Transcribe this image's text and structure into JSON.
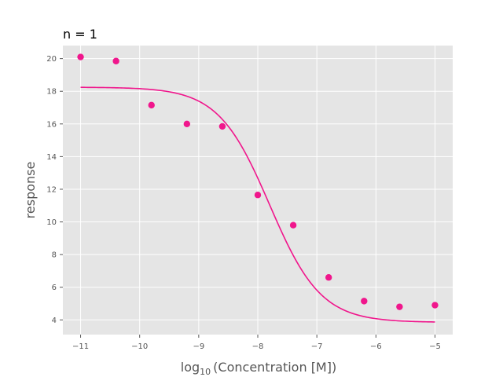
{
  "chart_data": {
    "type": "scatter",
    "title": "n = 1",
    "xlabel_main": "log",
    "xlabel_sub": "10",
    "xlabel_rest": "(Concentration [M])",
    "ylabel": "response",
    "xlim": [
      -11.3,
      -4.7
    ],
    "ylim": [
      3.1,
      20.8
    ],
    "x_ticks": [
      -11,
      -10,
      -9,
      -8,
      -7,
      -6,
      -5
    ],
    "x_tick_labels": [
      "−11",
      "−10",
      "−9",
      "−8",
      "−7",
      "−6",
      "−5"
    ],
    "y_ticks": [
      4,
      6,
      8,
      10,
      12,
      14,
      16,
      18,
      20
    ],
    "y_tick_labels": [
      "4",
      "6",
      "8",
      "10",
      "12",
      "14",
      "16",
      "18",
      "20"
    ],
    "grid": true,
    "series": [
      {
        "type": "scatter",
        "x": [
          -11,
          -10.4,
          -9.8,
          -9.2,
          -8.6,
          -8.0,
          -7.4,
          -6.8,
          -6.2,
          -5.6,
          -5.0
        ],
        "y": [
          20.1,
          19.85,
          17.15,
          16.0,
          15.85,
          11.65,
          9.8,
          6.6,
          5.15,
          4.8,
          4.9
        ]
      },
      {
        "type": "line",
        "fit": {
          "top": 18.25,
          "bottom": 3.85,
          "logEC50": -7.8,
          "hill": 1
        },
        "x_range": [
          -11,
          -5
        ]
      }
    ],
    "colors": {
      "series": "#f0168c",
      "background": "#e5e5e5",
      "grid": "#ffffff"
    }
  }
}
